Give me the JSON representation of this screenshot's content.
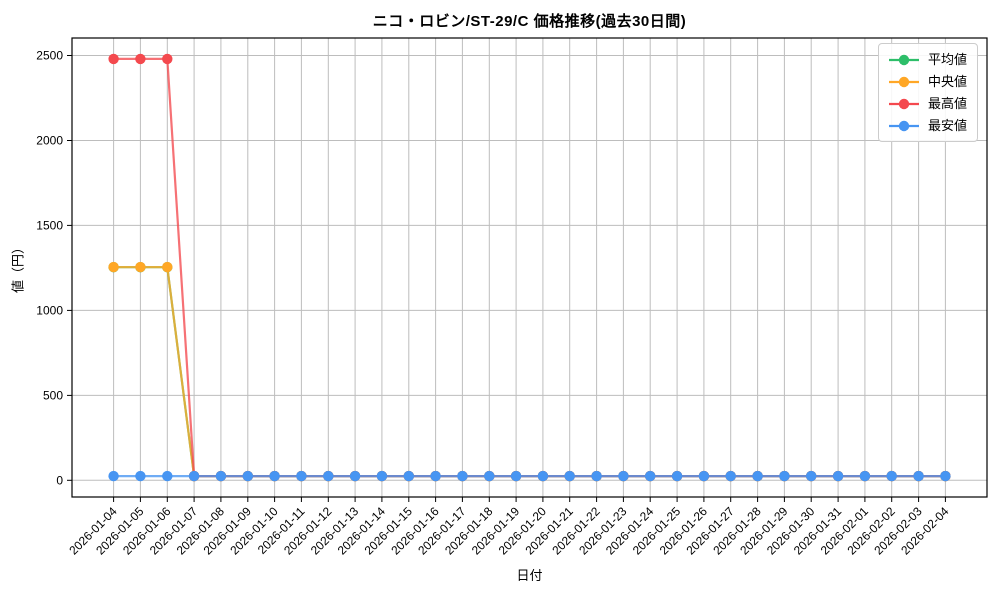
{
  "figure": {
    "title": "ニコ・ロビン/ST-29/C 価格推移(過去30日間)",
    "xlabel": "日付",
    "ylabel": "値（円）"
  },
  "chart_data": {
    "type": "line",
    "title": "ニコ・ロビン/ST-29/C 価格推移(過去30日間)",
    "xlabel": "日付",
    "ylabel": "値（円）",
    "grid": true,
    "legend_position": "upper-right",
    "marker": "circle",
    "ylim": [
      -98,
      2603
    ],
    "yticks": [
      0,
      500,
      1000,
      1500,
      2000,
      2500
    ],
    "categories": [
      "2026-01-04",
      "2026-01-05",
      "2026-01-06",
      "2026-01-07",
      "2026-01-08",
      "2026-01-09",
      "2026-01-10",
      "2026-01-11",
      "2026-01-12",
      "2026-01-13",
      "2026-01-14",
      "2026-01-15",
      "2026-01-16",
      "2026-01-17",
      "2026-01-18",
      "2026-01-19",
      "2026-01-20",
      "2026-01-21",
      "2026-01-22",
      "2026-01-23",
      "2026-01-24",
      "2026-01-25",
      "2026-01-26",
      "2026-01-27",
      "2026-01-28",
      "2026-01-29",
      "2026-01-30",
      "2026-01-31",
      "2026-02-01",
      "2026-02-02",
      "2026-02-03",
      "2026-02-04"
    ],
    "series": [
      {
        "id": "average",
        "name": "平均値",
        "color": "#2dbe69",
        "values": [
          1254,
          1254,
          1254,
          25,
          25,
          25,
          25,
          25,
          25,
          25,
          25,
          25,
          25,
          25,
          25,
          25,
          25,
          25,
          25,
          25,
          25,
          25,
          25,
          25,
          25,
          25,
          25,
          25,
          25,
          25,
          25,
          25
        ]
      },
      {
        "id": "median",
        "name": "中央値",
        "color": "#ffa726",
        "values": [
          1255,
          1255,
          1255,
          25,
          25,
          25,
          25,
          25,
          25,
          25,
          25,
          25,
          25,
          25,
          25,
          25,
          25,
          25,
          25,
          25,
          25,
          25,
          25,
          25,
          25,
          25,
          25,
          25,
          25,
          25,
          25,
          25
        ]
      },
      {
        "id": "max",
        "name": "最高値",
        "color": "#f4494e",
        "values": [
          2480,
          2480,
          2480,
          25,
          25,
          25,
          25,
          25,
          25,
          25,
          25,
          25,
          25,
          25,
          25,
          25,
          25,
          25,
          25,
          25,
          25,
          25,
          25,
          25,
          25,
          25,
          25,
          25,
          25,
          25,
          25,
          25
        ]
      },
      {
        "id": "min",
        "name": "最安値",
        "color": "#4795f2",
        "values": [
          25,
          25,
          25,
          25,
          25,
          25,
          25,
          25,
          25,
          25,
          25,
          25,
          25,
          25,
          25,
          25,
          25,
          25,
          25,
          25,
          25,
          25,
          25,
          25,
          25,
          25,
          25,
          25,
          25,
          25,
          25,
          25
        ]
      }
    ],
    "style": {
      "grid_color": "#bdbdbd",
      "spine_color": "#000000",
      "tick_label_color": "#000000",
      "line_opacity": 0.78,
      "background": "#ffffff"
    }
  }
}
